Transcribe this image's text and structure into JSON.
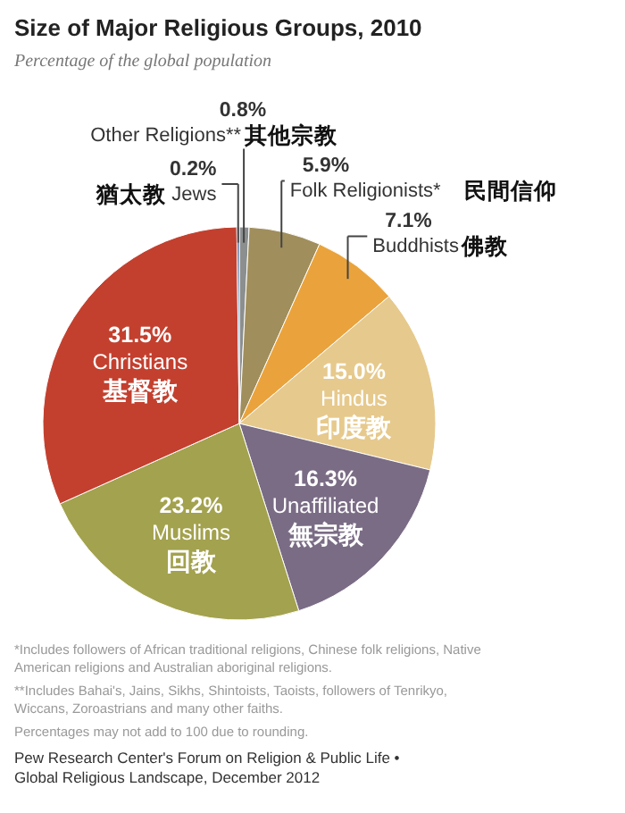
{
  "chart_data": {
    "type": "pie",
    "title": "Size of Major Religious Groups, 2010",
    "subtitle": "Percentage of the global population",
    "categories": [
      "Other Religions**",
      "Folk Religionists*",
      "Buddhists",
      "Hindus",
      "Unaffiliated",
      "Muslims",
      "Christians",
      "Jews"
    ],
    "values": [
      0.8,
      5.9,
      7.1,
      15.0,
      16.3,
      23.2,
      31.5,
      0.2
    ],
    "value_labels": [
      "0.8%",
      "5.9%",
      "7.1%",
      "15.0%",
      "16.3%",
      "23.2%",
      "31.5%",
      "0.2%"
    ],
    "colors": [
      "#8c8f90",
      "#a08e5c",
      "#eaa33c",
      "#e6c98c",
      "#7a6c85",
      "#a3a24e",
      "#c3402f",
      "#4a6f9f"
    ],
    "annotations": [
      {
        "text": "其他宗教",
        "x": "Other Religions**"
      },
      {
        "text": "民間信仰",
        "x": "Folk Religionists*"
      },
      {
        "text": "佛教",
        "x": "Buddhists"
      },
      {
        "text": "印度教",
        "x": "Hindus"
      },
      {
        "text": "無宗教",
        "x": "Unaffiliated"
      },
      {
        "text": "回教",
        "x": "Muslims"
      },
      {
        "text": "基督教",
        "x": "Christians"
      },
      {
        "text": "猶太教",
        "x": "Jews"
      },
      "*Includes followers of African traditional religions, Chinese folk religions, Native American religions and Australian aboriginal religions.",
      "**Includes Bahai's, Jains, Sikhs, Shintoists, Taoists, followers of Tenrikyo, Wiccans, Zoroastrians and many other faiths.",
      "Percentages may not add to 100 due to rounding.",
      "Pew Research Center's Forum on Religion & Public Life • Global Religious Landscape, December 2012"
    ]
  }
}
